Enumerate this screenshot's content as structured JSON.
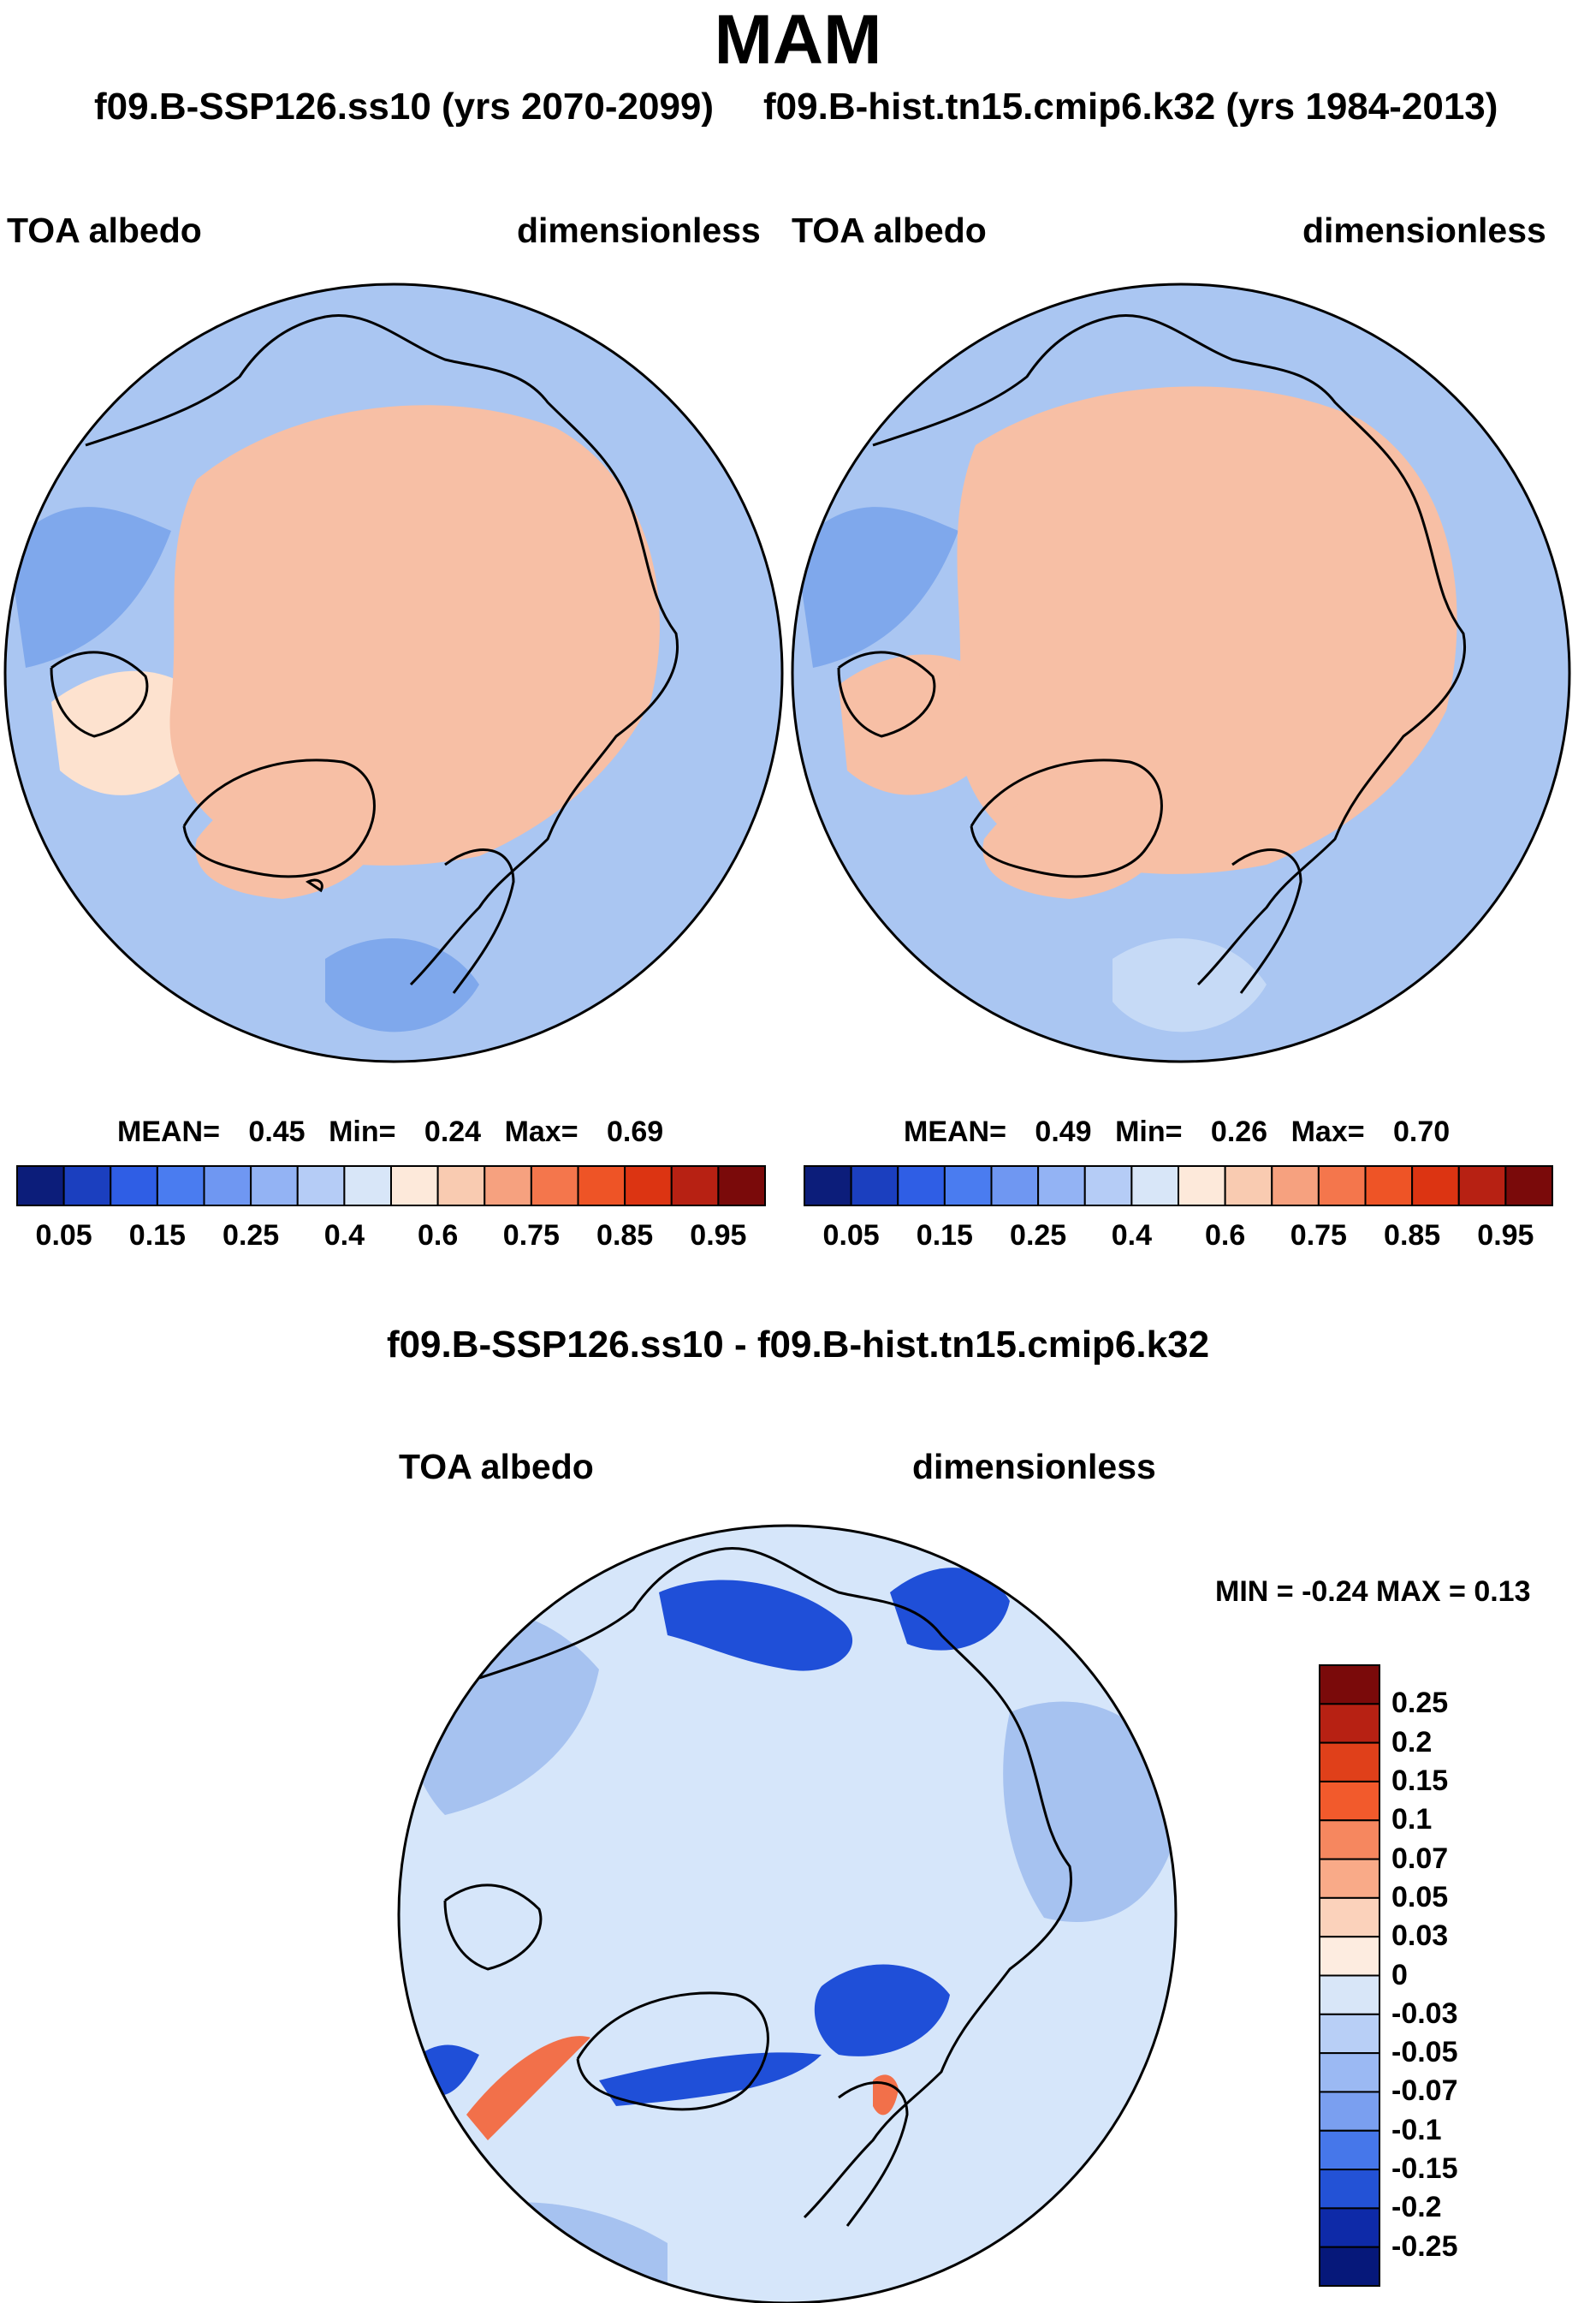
{
  "title": "MAM",
  "panels": {
    "left": {
      "subtitle": "f09.B-SSP126.ss10 (yrs 2070-2099)",
      "variable": "TOA albedo",
      "units": "dimensionless",
      "stats": {
        "mean_label": "MEAN=",
        "mean": "0.45",
        "min_label": "Min=",
        "min": "0.24",
        "max_label": "Max=",
        "max": "0.69"
      }
    },
    "right": {
      "subtitle": "f09.B-hist.tn15.cmip6.k32 (yrs 1984-2013)",
      "variable": "TOA albedo",
      "units": "dimensionless",
      "stats": {
        "mean_label": "MEAN=",
        "mean": "0.49",
        "min_label": "Min=",
        "min": "0.26",
        "max_label": "Max=",
        "max": "0.70"
      }
    },
    "diff": {
      "subtitle": "f09.B-SSP126.ss10 - f09.B-hist.tn15.cmip6.k32",
      "variable": "TOA albedo",
      "units": "dimensionless",
      "minmax": "MIN =  -0.24 MAX =   0.13"
    }
  },
  "colors": {
    "ocean_mid": "#aac6f2",
    "ocean_light": "#c6daf6",
    "ocean_deep": "#7fa8ec",
    "ice": "#f7bfa5",
    "ice_edge": "#fde2cf",
    "diff_bg": "#d6e6fa",
    "diff_neg": "#a6c2f0",
    "diff_strong": "#1f4fd8",
    "diff_pos": "#f2704a",
    "coast": "#000000"
  },
  "chart_data": [
    {
      "type": "heatmap",
      "projection": "north-polar-stereographic",
      "title": "f09.B-SSP126.ss10 (yrs 2070-2099)",
      "variable": "TOA albedo",
      "units": "dimensionless",
      "mean": 0.45,
      "min": 0.24,
      "max": 0.69,
      "colorbar": {
        "ticks": [
          "0.05",
          "0.15",
          "0.25",
          "0.4",
          "0.6",
          "0.75",
          "0.85",
          "0.95"
        ],
        "levels": [
          0.05,
          0.1,
          0.15,
          0.2,
          0.25,
          0.3,
          0.35,
          0.4,
          0.5,
          0.6,
          0.7,
          0.75,
          0.8,
          0.85,
          0.9,
          0.95
        ],
        "colors": [
          "#0c1d7a",
          "#1b3fbf",
          "#2f5ee5",
          "#4a7cf0",
          "#6f97f2",
          "#93b3f4",
          "#b5ccf6",
          "#d8e6f8",
          "#fde9da",
          "#f9cbb1",
          "#f6a17f",
          "#f4764c",
          "#ee5426",
          "#dc3412",
          "#b72113",
          "#7a0a0a"
        ],
        "orientation": "horizontal"
      }
    },
    {
      "type": "heatmap",
      "projection": "north-polar-stereographic",
      "title": "f09.B-hist.tn15.cmip6.k32 (yrs 1984-2013)",
      "variable": "TOA albedo",
      "units": "dimensionless",
      "mean": 0.49,
      "min": 0.26,
      "max": 0.7,
      "colorbar": {
        "ticks": [
          "0.05",
          "0.15",
          "0.25",
          "0.4",
          "0.6",
          "0.75",
          "0.85",
          "0.95"
        ],
        "levels": [
          0.05,
          0.1,
          0.15,
          0.2,
          0.25,
          0.3,
          0.35,
          0.4,
          0.5,
          0.6,
          0.7,
          0.75,
          0.8,
          0.85,
          0.9,
          0.95
        ],
        "colors": [
          "#0c1d7a",
          "#1b3fbf",
          "#2f5ee5",
          "#4a7cf0",
          "#6f97f2",
          "#93b3f4",
          "#b5ccf6",
          "#d8e6f8",
          "#fde9da",
          "#f9cbb1",
          "#f6a17f",
          "#f4764c",
          "#ee5426",
          "#dc3412",
          "#b72113",
          "#7a0a0a"
        ],
        "orientation": "horizontal"
      }
    },
    {
      "type": "heatmap",
      "projection": "north-polar-stereographic",
      "title": "f09.B-SSP126.ss10 - f09.B-hist.tn15.cmip6.k32",
      "variable": "TOA albedo",
      "units": "dimensionless",
      "min": -0.24,
      "max": 0.13,
      "colorbar": {
        "ticks": [
          "0.25",
          "0.2",
          "0.15",
          "0.1",
          "0.07",
          "0.05",
          "0.03",
          "0",
          "-0.03",
          "-0.05",
          "-0.07",
          "-0.1",
          "-0.15",
          "-0.2",
          "-0.25"
        ],
        "colors": [
          "#7a0a0a",
          "#b72113",
          "#e0401a",
          "#f25a2c",
          "#f6875f",
          "#f9aa88",
          "#fbd2bb",
          "#fdece0",
          "#d8e6f8",
          "#b8cff6",
          "#9bb9f3",
          "#7a9ff0",
          "#4677ea",
          "#2352d6",
          "#0e2aa8",
          "#06187a"
        ],
        "orientation": "vertical"
      }
    }
  ]
}
